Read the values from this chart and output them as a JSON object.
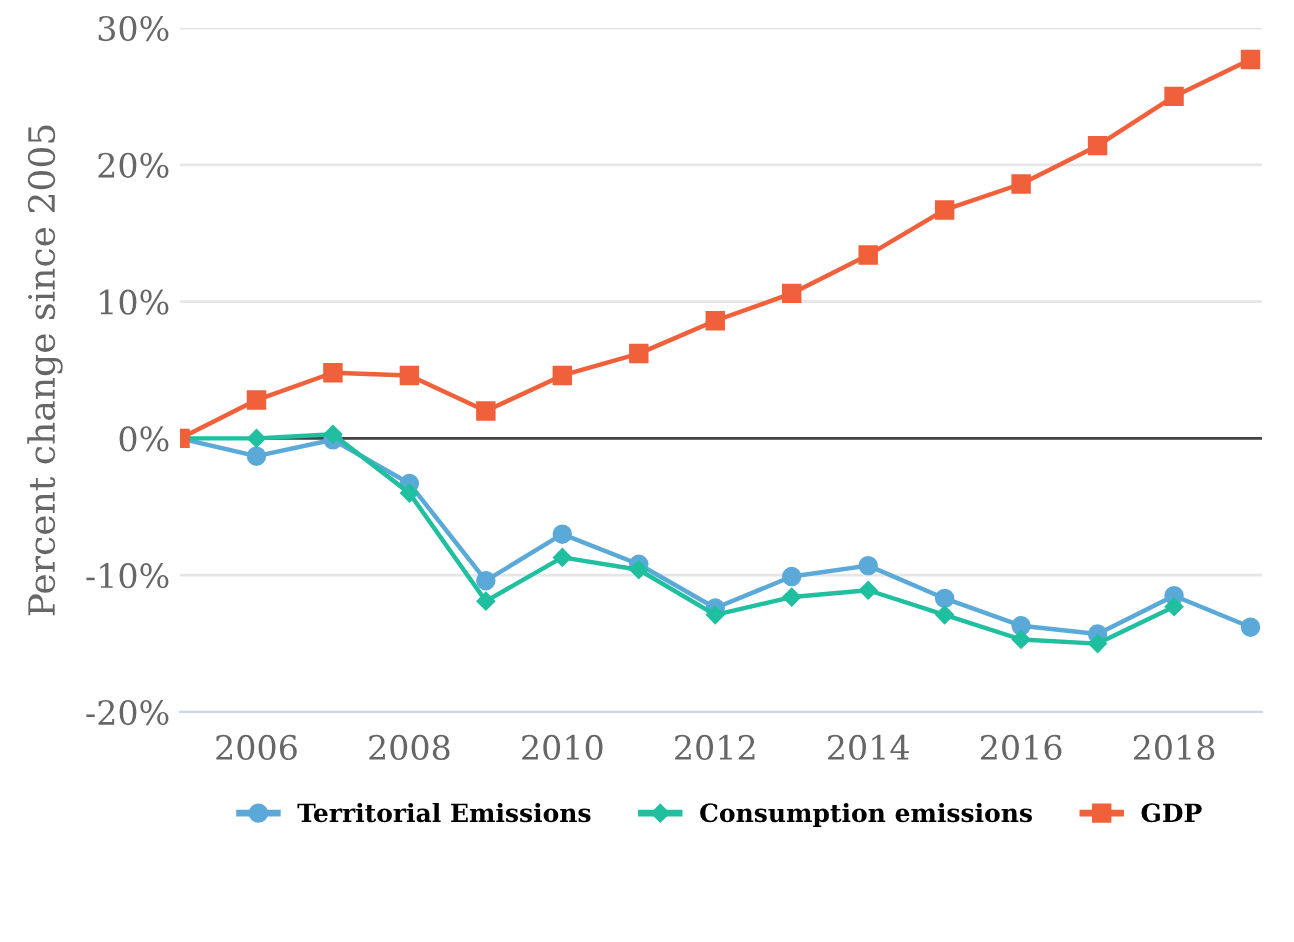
{
  "chart_data": {
    "type": "line",
    "ylabel": "Percent change since 2005",
    "x": [
      2005,
      2006,
      2007,
      2008,
      2009,
      2010,
      2011,
      2012,
      2013,
      2014,
      2015,
      2016,
      2017,
      2018,
      2019
    ],
    "series": [
      {
        "name": "Territorial Emissions",
        "color": "#5aa9d8",
        "marker": "circle",
        "values": [
          0,
          -1.3,
          -0.1,
          -3.3,
          -10.4,
          -7.0,
          -9.2,
          -12.4,
          -10.1,
          -9.3,
          -11.7,
          -13.7,
          -14.3,
          -11.5,
          -13.8
        ]
      },
      {
        "name": "Consumption emissions",
        "color": "#1fbf9f",
        "marker": "diamond",
        "values": [
          0,
          0,
          0.3,
          -4.0,
          -11.9,
          -8.7,
          -9.6,
          -12.9,
          -11.6,
          -11.1,
          -12.9,
          -14.7,
          -15.0,
          -12.3,
          null
        ]
      },
      {
        "name": "GDP",
        "color": "#f0603a",
        "marker": "square",
        "values": [
          0,
          2.8,
          4.8,
          4.6,
          2.0,
          4.6,
          6.2,
          8.6,
          10.6,
          13.4,
          16.7,
          18.6,
          21.4,
          25.0,
          27.7
        ]
      }
    ],
    "xlim": [
      2005,
      2019.15
    ],
    "xticks": [
      2006,
      2008,
      2010,
      2012,
      2014,
      2016,
      2018
    ],
    "ylim": [
      -20,
      30
    ],
    "yticks": [
      {
        "value": -20,
        "label": "-20%"
      },
      {
        "value": -10,
        "label": "-10%"
      },
      {
        "value": 0,
        "label": "0%"
      },
      {
        "value": 10,
        "label": "10%"
      },
      {
        "value": 20,
        "label": "20%"
      },
      {
        "value": 30,
        "label": "30%"
      }
    ],
    "grid": "y",
    "legend": "bottom",
    "line_style": "solid",
    "ref_lines": [
      {
        "axis": "y",
        "value": 0,
        "label": null,
        "color": "#444444"
      }
    ]
  }
}
